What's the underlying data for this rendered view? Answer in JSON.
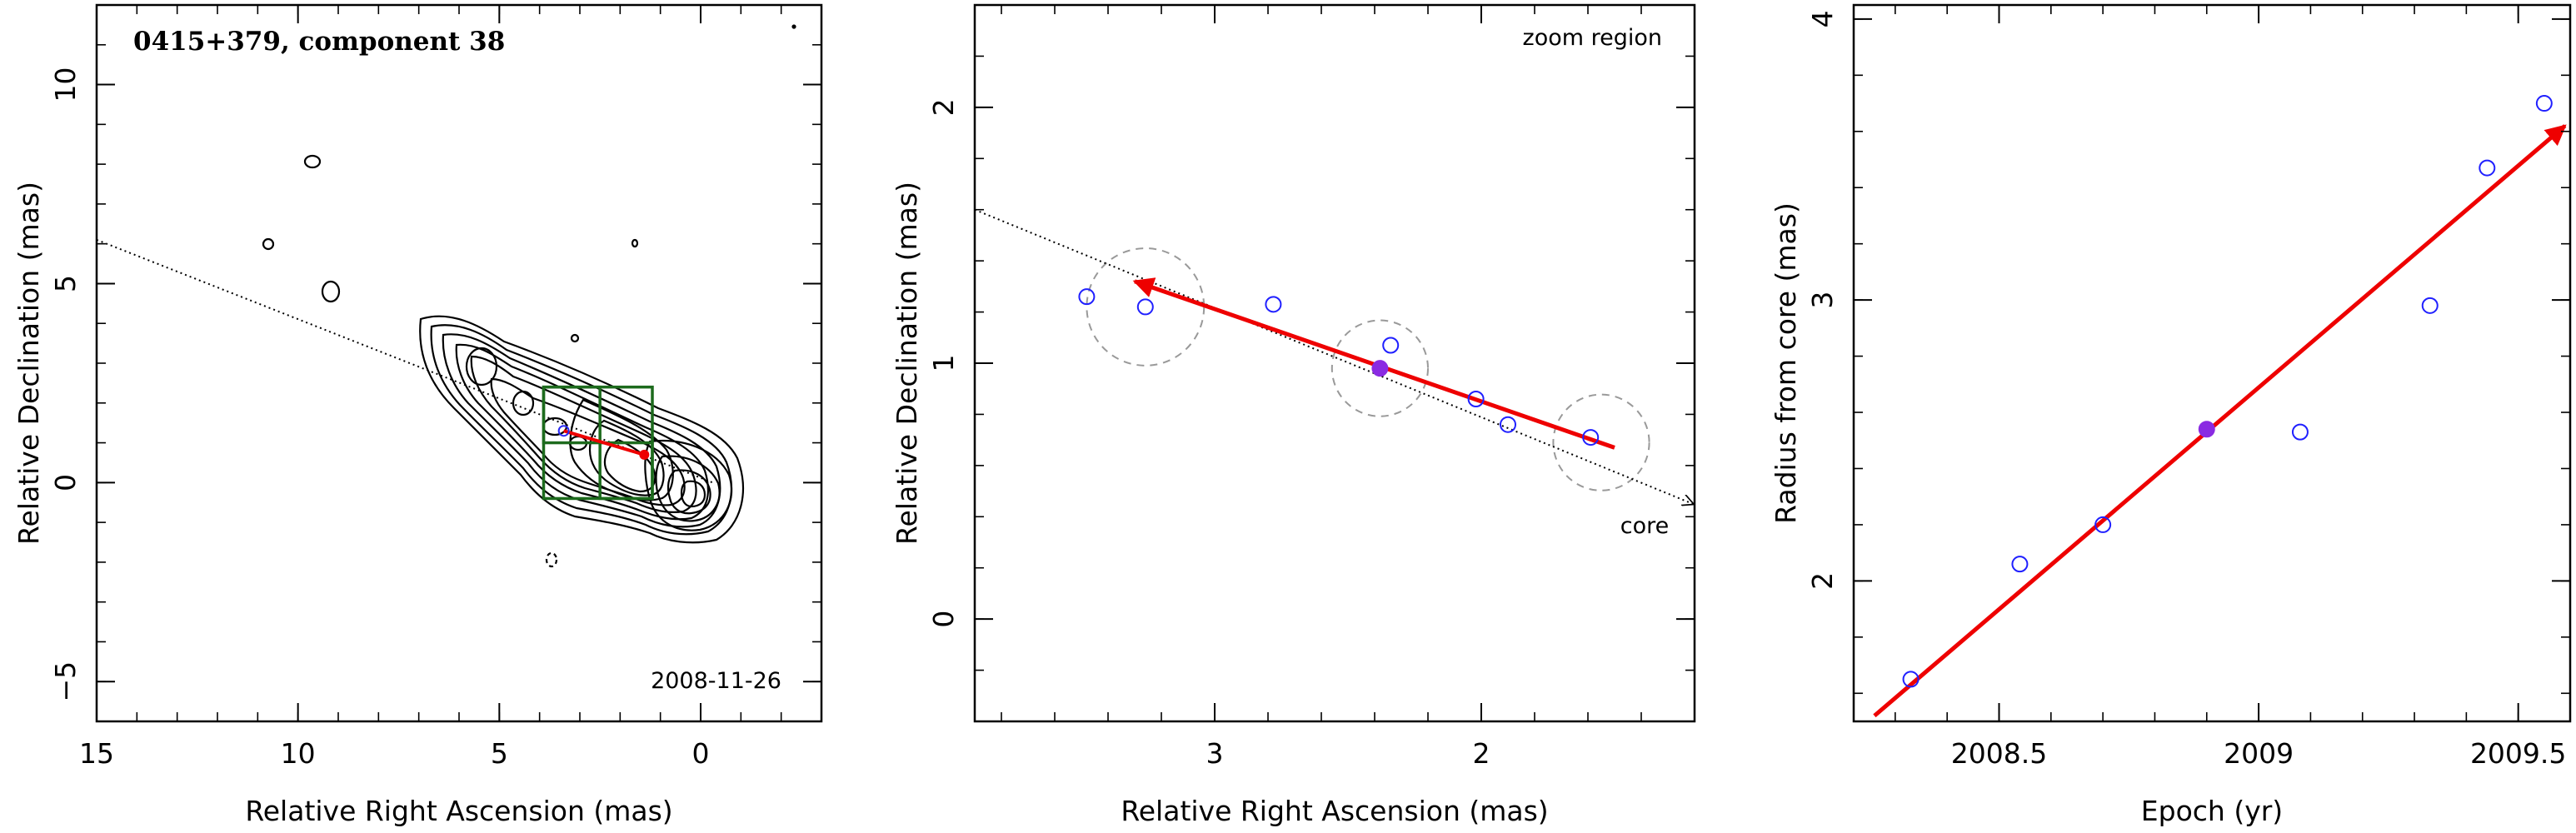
{
  "chart_data": [
    {
      "type": "contour",
      "title": "0415+379, component 38",
      "date_label": "2008-11-26",
      "xlabel": "Relative Right Ascension (mas)",
      "ylabel": "Relative Declination (mas)",
      "xlim": [
        15,
        -3
      ],
      "ylim": [
        -6,
        12
      ],
      "xticks": [
        15,
        10,
        5,
        0
      ],
      "yticks": [
        -5,
        0,
        5,
        10
      ],
      "jet_axis_line": [
        [
          15,
          6.1
        ],
        [
          -0.3,
          0.0
        ]
      ],
      "component_marker": {
        "x": 3.4,
        "y": 1.3
      },
      "motion_arrow": {
        "from": [
          1.4,
          0.7
        ],
        "to": [
          3.4,
          1.3
        ],
        "color": "#ee0000"
      },
      "zoom_boxes": [
        {
          "x0": 3.9,
          "x1": 1.2,
          "y0": -0.4,
          "y1": 2.4,
          "color": "#1d6b1d"
        },
        {
          "x0": 3.9,
          "x1": 2.5,
          "y0": 1.0,
          "y1": 2.4,
          "color": "#1d6b1d"
        },
        {
          "x0": 2.5,
          "x1": 1.2,
          "y0": -0.4,
          "y1": 1.0,
          "color": "#1d6b1d"
        }
      ]
    },
    {
      "type": "scatter",
      "label": "zoom region",
      "core_label": "core",
      "xlabel": "Relative Right Ascension (mas)",
      "ylabel": "Relative Declination (mas)",
      "xlim": [
        3.9,
        1.2
      ],
      "ylim": [
        -0.4,
        2.4
      ],
      "xticks": [
        3,
        2
      ],
      "yticks": [
        0,
        1,
        2
      ],
      "points": [
        {
          "x": 3.48,
          "y": 1.26
        },
        {
          "x": 3.26,
          "y": 1.22
        },
        {
          "x": 2.78,
          "y": 1.23
        },
        {
          "x": 2.34,
          "y": 1.07
        },
        {
          "x": 2.02,
          "y": 0.86
        },
        {
          "x": 1.9,
          "y": 0.76
        },
        {
          "x": 1.59,
          "y": 0.71
        }
      ],
      "highlight_point": {
        "x": 2.38,
        "y": 0.98,
        "color": "#8a2be2"
      },
      "error_circles": [
        {
          "x": 3.26,
          "y": 1.22,
          "r": 0.22
        },
        {
          "x": 2.38,
          "y": 0.98,
          "r": 0.18
        },
        {
          "x": 1.55,
          "y": 0.69,
          "r": 0.18
        }
      ],
      "jet_axis_line": {
        "from": [
          3.9,
          1.6
        ],
        "to": [
          1.2,
          0.45
        ]
      },
      "motion_arrow": {
        "from": [
          1.5,
          0.67
        ],
        "to": [
          3.3,
          1.32
        ],
        "color": "#ee0000"
      }
    },
    {
      "type": "scatter",
      "xlabel": "Epoch (yr)",
      "ylabel": "Radius from core (mas)",
      "xlim": [
        2008.22,
        2009.6
      ],
      "ylim": [
        1.5,
        4.05
      ],
      "xticks": [
        2008.5,
        2009,
        2009.5
      ],
      "xtick_labels": [
        "2008.5",
        "2009",
        "2009.5"
      ],
      "yticks": [
        2,
        3,
        4
      ],
      "points": [
        {
          "x": 2008.33,
          "y": 1.65
        },
        {
          "x": 2008.54,
          "y": 2.06
        },
        {
          "x": 2008.7,
          "y": 2.2
        },
        {
          "x": 2009.08,
          "y": 2.53
        },
        {
          "x": 2009.33,
          "y": 2.98
        },
        {
          "x": 2009.44,
          "y": 3.47
        },
        {
          "x": 2009.55,
          "y": 3.7
        }
      ],
      "highlight_point": {
        "x": 2008.9,
        "y": 2.54,
        "color": "#8a2be2"
      },
      "fit_arrow": {
        "from": [
          2008.26,
          1.52
        ],
        "to": [
          2009.59,
          3.62
        ],
        "color": "#ee0000"
      }
    }
  ]
}
